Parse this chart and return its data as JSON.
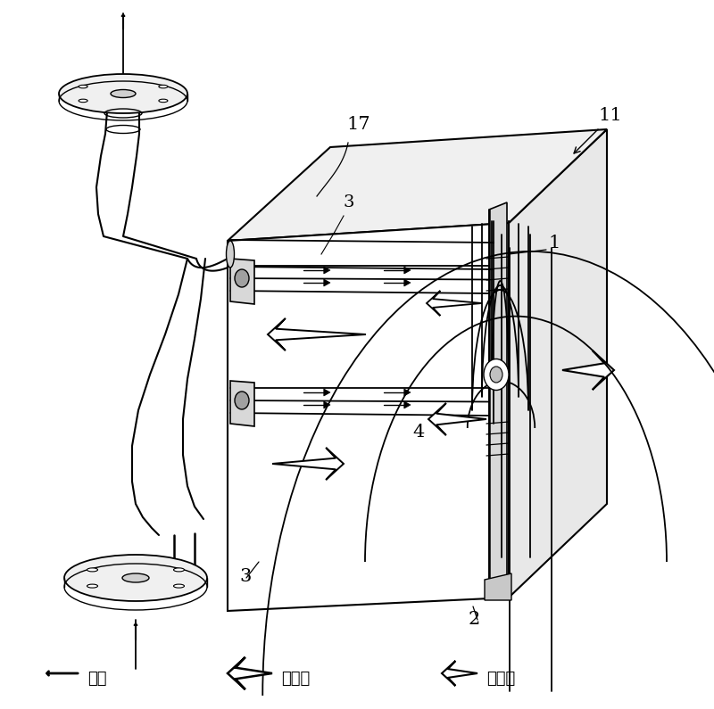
{
  "bg": "#ffffff",
  "lc": "#000000",
  "labels": {
    "fluid": "流体",
    "main_vib": "主振动",
    "sec_vib": "副振动"
  },
  "figsize": [
    8.0,
    7.95
  ],
  "dpi": 100
}
